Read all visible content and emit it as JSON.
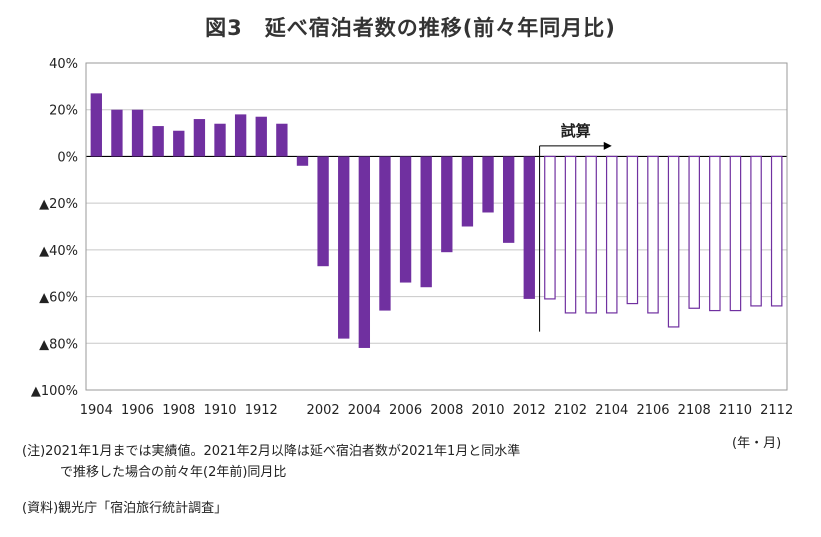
{
  "chart_data": {
    "type": "bar",
    "title": "図3　延べ宿泊者数の推移(前々年同月比)",
    "unit_label": "(年・月)",
    "y_unit": "%",
    "ylim": [
      -100,
      40
    ],
    "y_ticks": [
      {
        "value": 40,
        "label": "40%"
      },
      {
        "value": 20,
        "label": "20%"
      },
      {
        "value": 0,
        "label": "0%"
      },
      {
        "value": -20,
        "label": "▲20%"
      },
      {
        "value": -40,
        "label": "▲40%"
      },
      {
        "value": -60,
        "label": "▲60%"
      },
      {
        "value": -80,
        "label": "▲80%"
      },
      {
        "value": -100,
        "label": "▲100%"
      }
    ],
    "grid": true,
    "categories": [
      "1904",
      "1905",
      "1906",
      "1907",
      "1908",
      "1909",
      "1910",
      "1911",
      "1912",
      "1913",
      "2001",
      "2002",
      "2003",
      "2004",
      "2005",
      "2006",
      "2007",
      "2008",
      "2009",
      "2010",
      "2011",
      "2012",
      "2101",
      "2102",
      "2103",
      "2104",
      "2105",
      "2106",
      "2107",
      "2108",
      "2109",
      "2110",
      "2111",
      "2112"
    ],
    "x_tick_labels": [
      "1904",
      "1906",
      "1908",
      "1910",
      "1912",
      "2002",
      "2004",
      "2006",
      "2008",
      "2010",
      "2012",
      "2102",
      "2104",
      "2106",
      "2108",
      "2110",
      "2112"
    ],
    "series": [
      {
        "style": "filled",
        "color": "#7030a0",
        "values": [
          27,
          20,
          20,
          13,
          11,
          16,
          14,
          18,
          17,
          14,
          -4,
          -47,
          -78,
          -82,
          -66,
          -54,
          -56,
          -41,
          -30,
          -24,
          -37,
          -61,
          null,
          null,
          null,
          null,
          null,
          null,
          null,
          null,
          null,
          null,
          null,
          null
        ]
      },
      {
        "style": "outline",
        "color": "#7030a0",
        "values": [
          null,
          null,
          null,
          null,
          null,
          null,
          null,
          null,
          null,
          null,
          null,
          null,
          null,
          null,
          null,
          null,
          null,
          null,
          null,
          null,
          null,
          null,
          -61,
          -67,
          -67,
          -67,
          -63,
          -67,
          -73,
          -65,
          -66,
          -66,
          -64,
          -64
        ]
      }
    ],
    "annotations": [
      {
        "text": "試算",
        "arrow": "right"
      }
    ]
  },
  "notes": {
    "line1": "(注)2021年1月までは実績値。2021年2月以降は延べ宿泊者数が2021年1月と同水準",
    "line2": "で推移した場合の前々年(2年前)同月比",
    "source": "(資料)観光庁「宿泊旅行統計調査」"
  }
}
